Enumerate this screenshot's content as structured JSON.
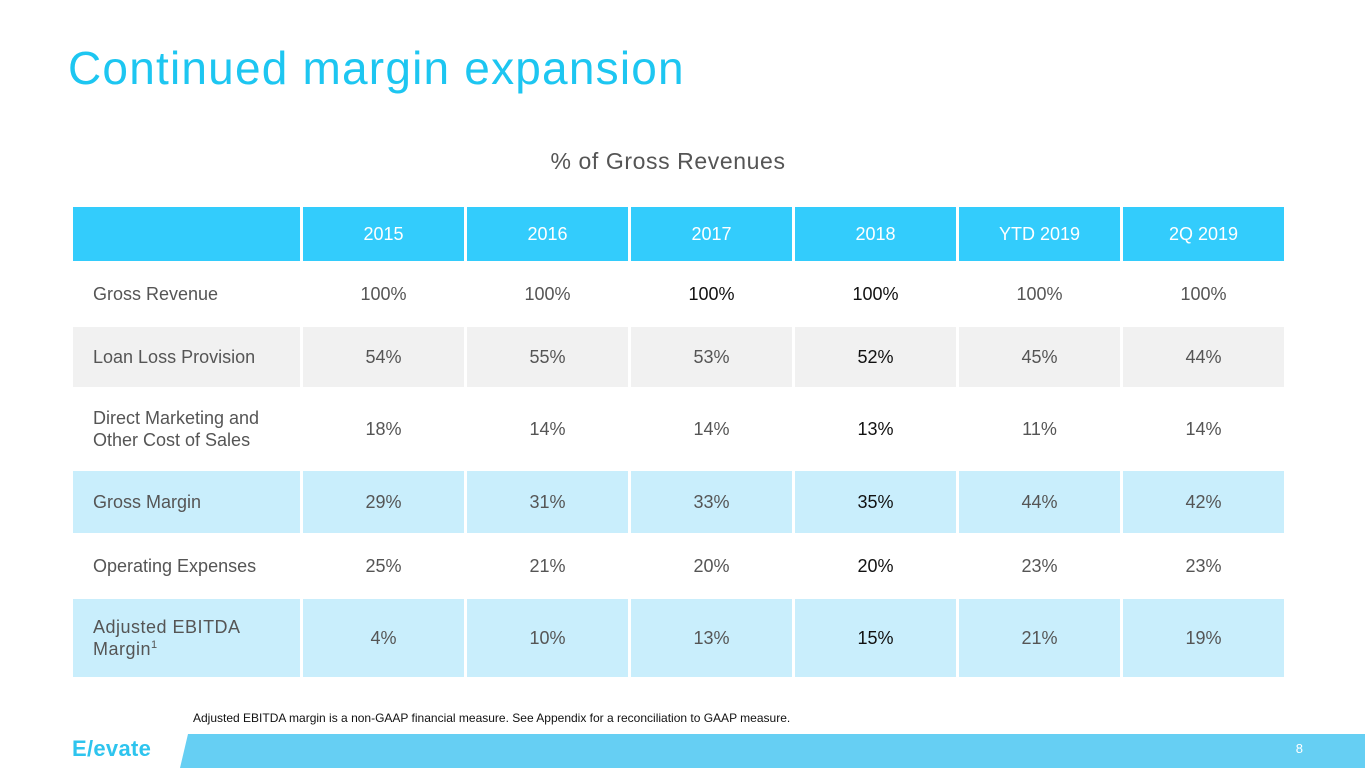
{
  "slide": {
    "title": "Continued margin expansion",
    "subtitle": "% of Gross Revenues",
    "footnote": "Adjusted EBITDA margin is a non-GAAP financial measure. See Appendix for a reconciliation to GAAP measure.",
    "logo": "E/evate",
    "page_number": "8"
  },
  "colors": {
    "title": "#1dc6f1",
    "header_bg": "#33ccfc",
    "gray_row": "#f1f1f1",
    "blue_row": "#c9eefc",
    "footer_band": "#66cff3"
  },
  "table": {
    "columns": [
      "",
      "2015",
      "2016",
      "2017",
      "2018",
      "YTD 2019",
      "2Q 2019"
    ],
    "rows": [
      {
        "label": "Gross Revenue",
        "values": [
          "100%",
          "100%",
          "100%",
          "100%",
          "100%",
          "100%"
        ]
      },
      {
        "label": "Loan Loss Provision",
        "values": [
          "54%",
          "55%",
          "53%",
          "52%",
          "45%",
          "44%"
        ]
      },
      {
        "label": "Direct Marketing and Other Cost of Sales",
        "values": [
          "18%",
          "14%",
          "14%",
          "13%",
          "11%",
          "14%"
        ]
      },
      {
        "label": "Gross Margin",
        "values": [
          "29%",
          "31%",
          "33%",
          "35%",
          "44%",
          "42%"
        ]
      },
      {
        "label": "Operating Expenses",
        "values": [
          "25%",
          "21%",
          "20%",
          "20%",
          "23%",
          "23%"
        ]
      },
      {
        "label": "Adjusted EBITDA Margin",
        "label_superscript": "1",
        "values": [
          "4%",
          "10%",
          "13%",
          "15%",
          "21%",
          "19%"
        ]
      }
    ]
  }
}
